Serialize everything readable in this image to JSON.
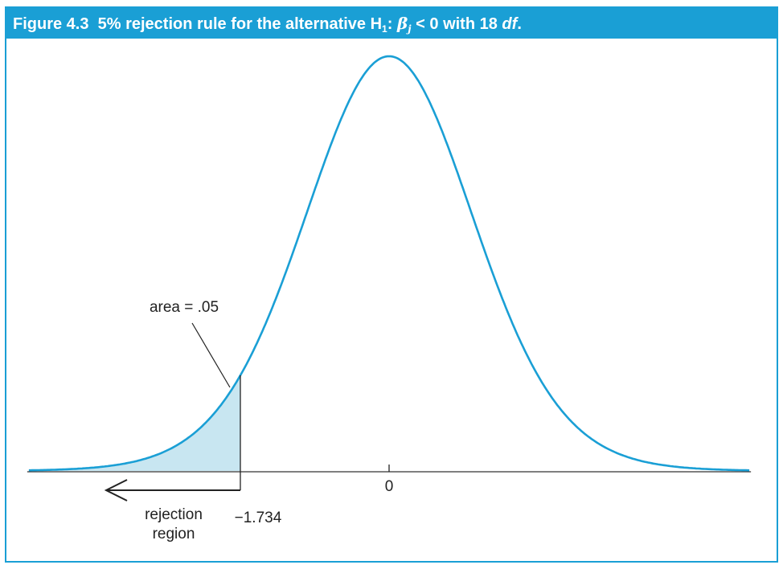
{
  "header": {
    "figure_number": "Figure 4.3",
    "title_prefix": "5% rejection rule for the alternative H",
    "h_subscript": "1",
    "colon": ":",
    "beta": "β",
    "beta_subscript": "j",
    "title_relation": " < 0 with 18 ",
    "df": "df",
    "period": "."
  },
  "chart_data": {
    "type": "area",
    "distribution": "t",
    "degrees_of_freedom": 18,
    "xlim": [
      -4.2,
      4.2
    ],
    "critical_value": -1.734,
    "tail": "left",
    "shaded_area": 0.05,
    "ticks": [
      {
        "value": 0,
        "label": "0"
      },
      {
        "value": -1.734,
        "label": "−1.734"
      }
    ],
    "annotations": {
      "area_label": "area = .05",
      "rejection_line1": "rejection",
      "rejection_line2": "region"
    },
    "colors": {
      "curve": "#1a9fd5",
      "fill": "#c8e6f1",
      "axis": "#333333",
      "header_bg": "#1a9fd5"
    }
  }
}
